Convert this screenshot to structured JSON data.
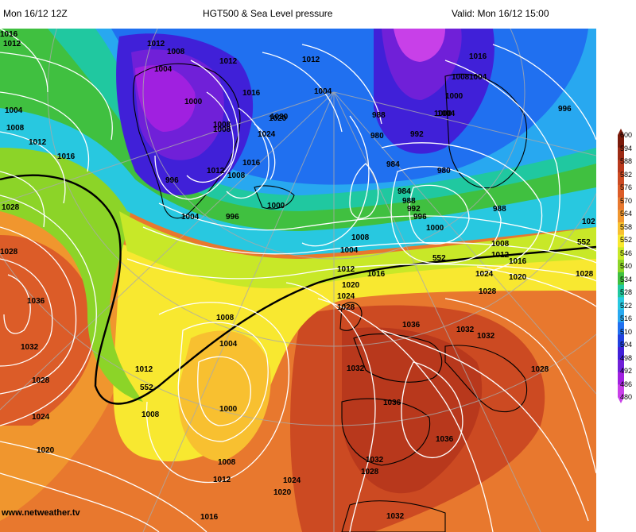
{
  "header": {
    "run": "Mon 16/12 12Z",
    "title": "HGT500 & Sea Level pressure",
    "valid": "Valid: Mon 16/12 15:00"
  },
  "credit": "www.netweather.tv",
  "colorbar": {
    "ticks": [
      "600",
      "594",
      "588",
      "582",
      "576",
      "570",
      "564",
      "558",
      "552",
      "546",
      "540",
      "534",
      "528",
      "522",
      "516",
      "510",
      "504",
      "498",
      "492",
      "486",
      "480"
    ],
    "colors": [
      "#7a1a0a",
      "#9c2a14",
      "#b8381c",
      "#cc4a22",
      "#dc5c28",
      "#e8782e",
      "#f0962e",
      "#f8c030",
      "#f8e830",
      "#c8e828",
      "#8cd428",
      "#40c040",
      "#20c8a0",
      "#28c8e0",
      "#28a8f0",
      "#2070f0",
      "#2040e0",
      "#4020d8",
      "#7020d8",
      "#a020e0",
      "#c840e8"
    ]
  },
  "pressure_labels": [
    {
      "text": "1016",
      "id": "a1"
    },
    {
      "text": "1012",
      "id": "a2"
    },
    {
      "text": "1008",
      "id": "a3"
    },
    {
      "text": "1012",
      "id": "a4"
    },
    {
      "text": "1004",
      "id": "a5"
    },
    {
      "text": "1000",
      "id": "a6"
    },
    {
      "text": "1012",
      "id": "a7"
    },
    {
      "text": "1012",
      "id": "a8"
    },
    {
      "text": "1008",
      "id": "a9"
    },
    {
      "text": "1004",
      "id": "a10"
    },
    {
      "text": "1000",
      "id": "a11"
    },
    {
      "text": "1016",
      "id": "a12"
    },
    {
      "text": "1020",
      "id": "a13"
    },
    {
      "text": "1004",
      "id": "a14"
    },
    {
      "text": "1008",
      "id": "a15"
    },
    {
      "text": "1012",
      "id": "a16"
    },
    {
      "text": "1016",
      "id": "a17"
    },
    {
      "text": "1028",
      "id": "a18"
    },
    {
      "text": "1036",
      "id": "a19"
    },
    {
      "text": "1032",
      "id": "a20"
    },
    {
      "text": "1028",
      "id": "a21"
    },
    {
      "text": "1024",
      "id": "a22"
    },
    {
      "text": "1020",
      "id": "a23"
    },
    {
      "text": "1008",
      "id": "a24"
    },
    {
      "text": "1020",
      "id": "a25"
    },
    {
      "text": "1024",
      "id": "a26"
    },
    {
      "text": "996",
      "id": "a27"
    },
    {
      "text": "1004",
      "id": "a28"
    },
    {
      "text": "996",
      "id": "a29"
    },
    {
      "text": "1000",
      "id": "a30"
    },
    {
      "text": "1012",
      "id": "a31"
    },
    {
      "text": "1008",
      "id": "a32"
    },
    {
      "text": "1016",
      "id": "a33"
    },
    {
      "text": "988",
      "id": "a34"
    },
    {
      "text": "980",
      "id": "a35"
    },
    {
      "text": "992",
      "id": "a36"
    },
    {
      "text": "984",
      "id": "a37"
    },
    {
      "text": "980",
      "id": "a38"
    },
    {
      "text": "984",
      "id": "a39"
    },
    {
      "text": "988",
      "id": "a40"
    },
    {
      "text": "992",
      "id": "a41"
    },
    {
      "text": "996",
      "id": "a42"
    },
    {
      "text": "1000",
      "id": "a43"
    },
    {
      "text": "988",
      "id": "a44"
    },
    {
      "text": "1004",
      "id": "a45"
    },
    {
      "text": "1008",
      "id": "a46"
    },
    {
      "text": "1004",
      "id": "a47"
    },
    {
      "text": "1000",
      "id": "a48"
    },
    {
      "text": "996",
      "id": "a49"
    },
    {
      "text": "1016",
      "id": "a50"
    },
    {
      "text": "1008",
      "id": "a51"
    },
    {
      "text": "1004",
      "id": "a52"
    },
    {
      "text": "1012",
      "id": "a53"
    },
    {
      "text": "1016",
      "id": "a54"
    },
    {
      "text": "1020",
      "id": "a55"
    },
    {
      "text": "1028",
      "id": "a56"
    },
    {
      "text": "1008",
      "id": "a57"
    },
    {
      "text": "1012",
      "id": "a58"
    },
    {
      "text": "1020",
      "id": "a59"
    },
    {
      "text": "1024",
      "id": "a60"
    },
    {
      "text": "1016",
      "id": "a61"
    },
    {
      "text": "1028",
      "id": "a62"
    },
    {
      "text": "1024",
      "id": "a63"
    },
    {
      "text": "1028",
      "id": "a64"
    },
    {
      "text": "1036",
      "id": "a65"
    },
    {
      "text": "1032",
      "id": "a66"
    },
    {
      "text": "1032",
      "id": "a67"
    },
    {
      "text": "1032",
      "id": "a68"
    },
    {
      "text": "1028",
      "id": "a69"
    },
    {
      "text": "1036",
      "id": "a70"
    },
    {
      "text": "1036",
      "id": "a71"
    },
    {
      "text": "1032",
      "id": "a72"
    },
    {
      "text": "1028",
      "id": "a73"
    },
    {
      "text": "1024",
      "id": "a74"
    },
    {
      "text": "1020",
      "id": "a75"
    },
    {
      "text": "1032",
      "id": "a76"
    },
    {
      "text": "1008",
      "id": "a77"
    },
    {
      "text": "1004",
      "id": "a78"
    },
    {
      "text": "1012",
      "id": "a79"
    },
    {
      "text": "1000",
      "id": "a80"
    },
    {
      "text": "1008",
      "id": "a81"
    },
    {
      "text": "1008",
      "id": "a82"
    },
    {
      "text": "1012",
      "id": "a83"
    },
    {
      "text": "1016",
      "id": "a84"
    },
    {
      "text": "1028",
      "id": "a85"
    },
    {
      "text": "552",
      "id": "a86"
    },
    {
      "text": "552",
      "id": "a87"
    },
    {
      "text": "552",
      "id": "a88"
    },
    {
      "text": "102",
      "id": "a89"
    }
  ]
}
